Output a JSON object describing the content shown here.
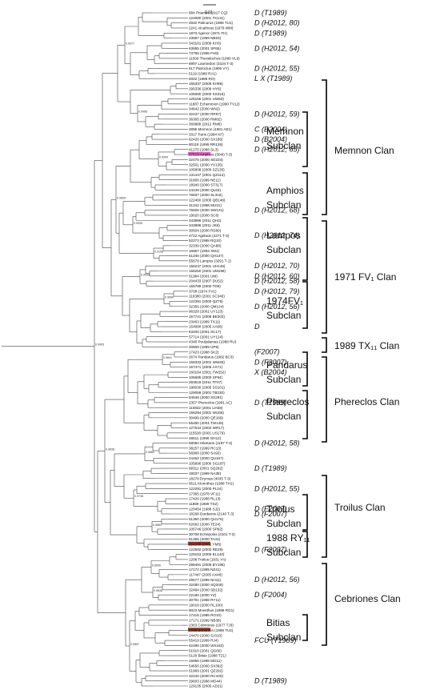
{
  "scale_label": "0.01",
  "leaves": [
    "884 Priamus (1917 CQ)",
    "124080 (2001 TK131)",
    "4832 Palinurus (1988 TU1)",
    "2241 Alcathous (1979 WM)",
    "1873 Agenor (1971 FH)",
    "23987 (1999 NB63)",
    "343161 (2009 KH3)",
    "63855 (2001 SP65)",
    "73795 (1995 FH8)",
    "11509 Thersilochos (1990 VL6)",
    "6997 Laomedon (3104 T-3)",
    "617 Patroclus (1906 VY)",
    "5119 (1988 RA1)",
    "6002 (1988 RO)",
    "155337 (2006 KH89)",
    "295336 (2008 HY8)",
    "106080 (2000 SS316)",
    "125155 (2001 UW93)",
    "11887 Echemmon (1990 TV12)",
    "34642 (2000 WN2)",
    "32437 (2000 RR97)",
    "36305 (2000 RM82)",
    "369886 (2012 RM6)",
    "2895 Memnon (1981 AE1)",
    "3317 Paris (1984 KF)",
    "62426 (2000 SX186)",
    "80119 (1999 RR136)",
    "41275 (1988 SL3)",
    "37519 Amphios (3040 T-3)",
    "32475 (2000 SD234)",
    "32501 (2000 YV135)",
    "105808 (2000 SZ135)",
    "131447 (2001 QZ113)",
    "31806 (1999 NE11)",
    "18940 (2000 ST317)",
    "24449 (2000 QL63)",
    "76837 (2000 SL316)",
    "122460 (2000 QB146)",
    "31342 (1998 MU31)",
    "76826 (2000 SW131)",
    "19020 (2000 SC6)",
    "343996 (2011 QH3)",
    "343896 (2011 JK8)",
    "30504 (2000 RS80)",
    "4722 Agelaos (4271 T-3)",
    "52273 (1988 RQ10)",
    "32339 (2000 QA88)",
    "16667 (1993 XM1)",
    "51346 (2000 QH137)",
    "55678 Lampos (3291 T-1)",
    "156237 (2001 UH146)",
    "156250 (2001 UM199)",
    "51984 (2001 UM)",
    "204433 (2007 DU52)",
    "155789 (2000 TD9)",
    "3708 (1974 FV1)",
    "110380 (2001 SC340)",
    "122391 (2000 QZ75)",
    "32356 (2000 QM124)",
    "96328 (2001 UY123)",
    "157741 (2006 BE202)",
    "23463 (1989 TX11)",
    "154990 (2005 AA66)",
    "63200 (2001 SC17)",
    "57714 (2001 UY124)",
    "4348 Poulydamas (1988 RU)",
    "30806 (1989 UP5)",
    "17423 (1988 SK2)",
    "2674 Pandarus (1982 BC3)",
    "158333 (2001 WW25)",
    "157471 (2005 AX71)",
    "160164 (2001 TW252)",
    "105685 (2000 SF94)",
    "283619 (2011 TP47)",
    "198030 (2005 SS101)",
    "129059 (2001 TB230)",
    "54646 (2000 SS291)",
    "2357 Phereclos (1981 AC)",
    "110832 (2001 UA58)",
    "156294 (2001 WU66)",
    "30499 (2000 QE169)",
    "55460 (2001 TW146)",
    "127534 (2002 WR17)",
    "115528 (2001 US179)",
    "28511 (1996 GH12)",
    "58084 Hiketaon (1197 T-3)",
    "38257 (1999 RC13)",
    "56968 (2000 SA92)",
    "24452 (2000 QU167)",
    "105896 (2000 SG187)",
    "99311 (2001 SQ282)",
    "18037 (1999 NA38)",
    "18278 Drymas (4035 T-3)",
    "9511 Klonnthus (1988 TH1)",
    "122281 (2000 PL24)",
    "17365 (1978 VF11)",
    "17420 (1988 RL13)",
    "11869 (1989 TS2)",
    "120454 (1988 SJ2)",
    "18268 Dardanos (2140 T-3)",
    "51350 (2000 QU176)",
    "62692 (2000 TE24)",
    "105746 (2000 SP92)",
    "30708 Echepolos (4101 T-3)",
    "51365 (2000 TA42)",
    "194265 (2001 YM5)",
    "122592 (2000 RE29)",
    "129153 (2005 EL140)",
    "1208 Troilus (1931 YA)",
    "299491 (2006 BY198)",
    "17172 (1999 NZ41)",
    "117447 (2005 AX46)",
    "29577 (1999 NH11)",
    "32480 (2000 SQ348)",
    "32484 (2000 SB132)",
    "22180 (2000 YZ)",
    "30791 (1988 RY11)",
    "19018 (2000 RL100)",
    "9023 Mnesthus (1988 RG1)",
    "17415 (1988 RO10)",
    "17171 (1999 NB38)",
    "2363 Cebriones (1977 TJ3)",
    "4709 Ennomos (1988 TU2)",
    "24470 (2000 SJ310)",
    "55419 (1999 RJ4)",
    "52496 (2000 WX182)",
    "51910 (2001 QG60)",
    "5120 Bitias (1988 TZ1)",
    "16956 (1998 MO11)",
    "54656 (2000 SX362)",
    "51969 (2001 QZ292)",
    "32440 (2000 RC100)",
    "29603 (1998 MO44)",
    "129135 (2005 AD21)"
  ],
  "node_labels": [
    "0.9377",
    "0.9966",
    "0.9999",
    "0.9535",
    "0.9158",
    "0.9859",
    "0.9534",
    "0.9898",
    "0.9841",
    "0.9882",
    "0.9738",
    "0.9883",
    "0.9838",
    "0.8906",
    "0.9836",
    "0.9857",
    "0.9905",
    "0.9827",
    "0.9786",
    "0.9559",
    "0.9786",
    "0.8865",
    "0.8385",
    "0.9888",
    "0.8923",
    "0.9886",
    "0.9916",
    "0.9896",
    "0.9343",
    "0.9916",
    "0.9839",
    "0.8540",
    "0.9986",
    "0.9981",
    "0.9861",
    "0.8885",
    "0.9775",
    "0.9744",
    "0.9747",
    "0.9417",
    "0.9425",
    "0.9426",
    "0.9737",
    "0.9824",
    "0.9858",
    "0.9141",
    "0.9735",
    "0.9919"
  ],
  "taxonomy": [
    {
      "text": "D (T1989)"
    },
    {
      "text": "D (H2012, 80)"
    },
    {
      "text": "D (T1989)"
    },
    {
      "text": "D (H2012, 54)"
    },
    {
      "text": "D (H2012, 55)"
    },
    {
      "text": "L X (T1989)"
    },
    {
      "text": "D (H2012, 59)"
    },
    {
      "text": "C (B2004)"
    },
    {
      "text": "D (B2004)"
    },
    {
      "text": "D (H2012, 65)"
    },
    {
      "text": "D (H2012, 68)"
    },
    {
      "text": "D (H2012, 74)"
    },
    {
      "text": "D (H2012, 70)"
    },
    {
      "text": "D (H2012, 60)"
    },
    {
      "text": "D (H2012, 58)"
    },
    {
      "text": "D (H2012, 79)"
    },
    {
      "text": "D (H2012, 56)"
    },
    {
      "text": "D"
    },
    {
      "text": "(F2007)"
    },
    {
      "text": "D (F2007)"
    },
    {
      "text": "X (B2004)"
    },
    {
      "text": "D (T1989)"
    },
    {
      "text": "D (H2012, 58)"
    },
    {
      "text": "D (T1989)"
    },
    {
      "text": "D (H2012, 55)"
    },
    {
      "text": "D (F2007)"
    },
    {
      "text": "D (F2007)"
    },
    {
      "text": "D (F2007)"
    },
    {
      "text": "D (H2012, 56)"
    },
    {
      "text": "D (F2004)"
    },
    {
      "text": "FCU (T1989)"
    },
    {
      "text": "D (T1989)"
    }
  ],
  "subclans": [
    "Memnon",
    "Subclan",
    "Amphios",
    "Subclan",
    "Lampos",
    "Subclan",
    "1974FV₁",
    "Subclan",
    "Pandarus",
    "Subclan",
    "Phereclos",
    "Subclan",
    "Triolus",
    "Subclan",
    "1988 RY₁₁",
    "Subclan",
    "Bitias",
    "Subclan"
  ],
  "clans": [
    "Memnon Clan",
    "1971 FV₁ Clan",
    "1989 TX₁₁ Clan",
    "Phereclos Clan",
    "Troilus Clan",
    "Cebriones Clan"
  ],
  "highlights": [
    {
      "leaf": "37519 Amphios (3040 T-3)",
      "color": "#e060c0"
    },
    {
      "leaf": "194265 (2001 YM5)",
      "color": "#8b3a2a"
    },
    {
      "leaf": "4709 Ennomos (1988 TU2)",
      "color": "#8b3a2a"
    }
  ]
}
